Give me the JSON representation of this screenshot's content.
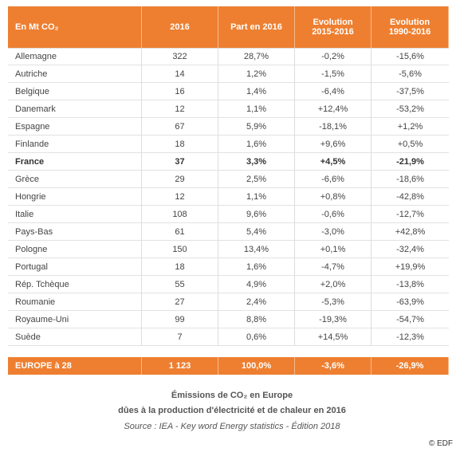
{
  "table": {
    "header": [
      "En Mt CO₂",
      "2016",
      "Part en 2016",
      "Evolution 2015-2016",
      "Evolution 1990-2016"
    ],
    "rows": [
      [
        "Allemagne",
        "322",
        "28,7%",
        "-0,2%",
        "-15,6%"
      ],
      [
        "Autriche",
        "14",
        "1,2%",
        "-1,5%",
        "-5,6%"
      ],
      [
        "Belgique",
        "16",
        "1,4%",
        "-6,4%",
        "-37,5%"
      ],
      [
        "Danemark",
        "12",
        "1,1%",
        "+12,4%",
        "-53,2%"
      ],
      [
        "Espagne",
        "67",
        "5,9%",
        "-18,1%",
        "+1,2%"
      ],
      [
        "Finlande",
        "18",
        "1,6%",
        "+9,6%",
        "+0,5%"
      ],
      [
        "France",
        "37",
        "3,3%",
        "+4,5%",
        "-21,9%"
      ],
      [
        "Grèce",
        "29",
        "2,5%",
        "-6,6%",
        "-18,6%"
      ],
      [
        "Hongrie",
        "12",
        "1,1%",
        "+0,8%",
        "-42,8%"
      ],
      [
        "Italie",
        "108",
        "9,6%",
        "-0,6%",
        "-12,7%"
      ],
      [
        "Pays-Bas",
        "61",
        "5,4%",
        "-3,0%",
        "+42,8%"
      ],
      [
        "Pologne",
        "150",
        "13,4%",
        "+0,1%",
        "-32,4%"
      ],
      [
        "Portugal",
        "18",
        "1,6%",
        "-4,7%",
        "+19,9%"
      ],
      [
        "Rép. Tchèque",
        "55",
        "4,9%",
        "+2,0%",
        "-13,8%"
      ],
      [
        "Roumanie",
        "27",
        "2,4%",
        "-5,3%",
        "-63,9%"
      ],
      [
        "Royaume-Uni",
        "99",
        "8,8%",
        "-19,3%",
        "-54,7%"
      ],
      [
        "Suède",
        "7",
        "0,6%",
        "+14,5%",
        "-12,3%"
      ]
    ],
    "highlight_row": 6,
    "total": [
      "EUROPE à 28",
      "1 123",
      "100,0%",
      "-3,6%",
      "-26,9%"
    ]
  },
  "caption": {
    "title": "Émissions  de CO₂ en Europe",
    "subtitle": "dûes à la production d'électricité et de chaleur en 2016",
    "source": "Source : IEA - Key word Energy statistics -  Édition 2018"
  },
  "credit": "© EDF"
}
